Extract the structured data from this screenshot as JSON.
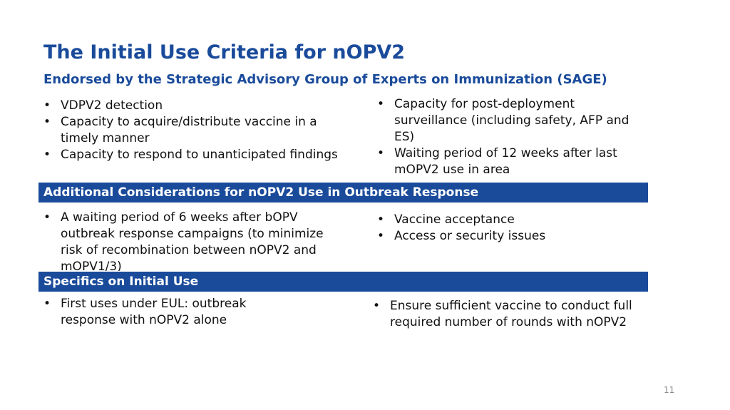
{
  "slide": {
    "title": "The Initial Use Criteria for nOPV2",
    "subtitle": "Endorsed by the Strategic Advisory Group of Experts on Immunization (SAGE)",
    "page_number": "11"
  },
  "criteria": {
    "left": [
      "VDPV2 detection",
      "Capacity to acquire/distribute vaccine in a timely manner",
      "Capacity to respond to unanticipated findings"
    ],
    "right": [
      "Capacity for post-deployment surveillance (including safety, AFP and ES)",
      "Waiting period of 12 weeks after last mOPV2 use in area"
    ]
  },
  "additional": {
    "header": "Additional Considerations for nOPV2 Use in Outbreak Response",
    "left": [
      "A waiting period of 6 weeks after bOPV outbreak response campaigns (to minimize risk of recombination between nOPV2 and mOPV1/3)"
    ],
    "right": [
      "Vaccine acceptance",
      "Access or security issues"
    ]
  },
  "specifics": {
    "header": "Specifics on Initial Use",
    "left": [
      "First uses under EUL: outbreak response with nOPV2 alone"
    ],
    "right": [
      "Ensure sufficient vaccine to conduct full required number of rounds with nOPV2"
    ]
  },
  "colors": {
    "accent": "#1a4b9b",
    "text": "#111111",
    "page_number": "#8a8a8a"
  }
}
